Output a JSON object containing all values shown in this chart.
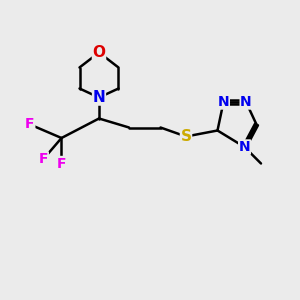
{
  "background_color": "#ebebeb",
  "atom_colors": {
    "C": "#000000",
    "N": "#0000ee",
    "O": "#dd0000",
    "S": "#ccaa00",
    "F": "#ee00ee"
  },
  "bond_color": "#000000",
  "bond_width": 1.8,
  "font_size": 10,
  "figsize": [
    3.0,
    3.0
  ],
  "dpi": 100
}
